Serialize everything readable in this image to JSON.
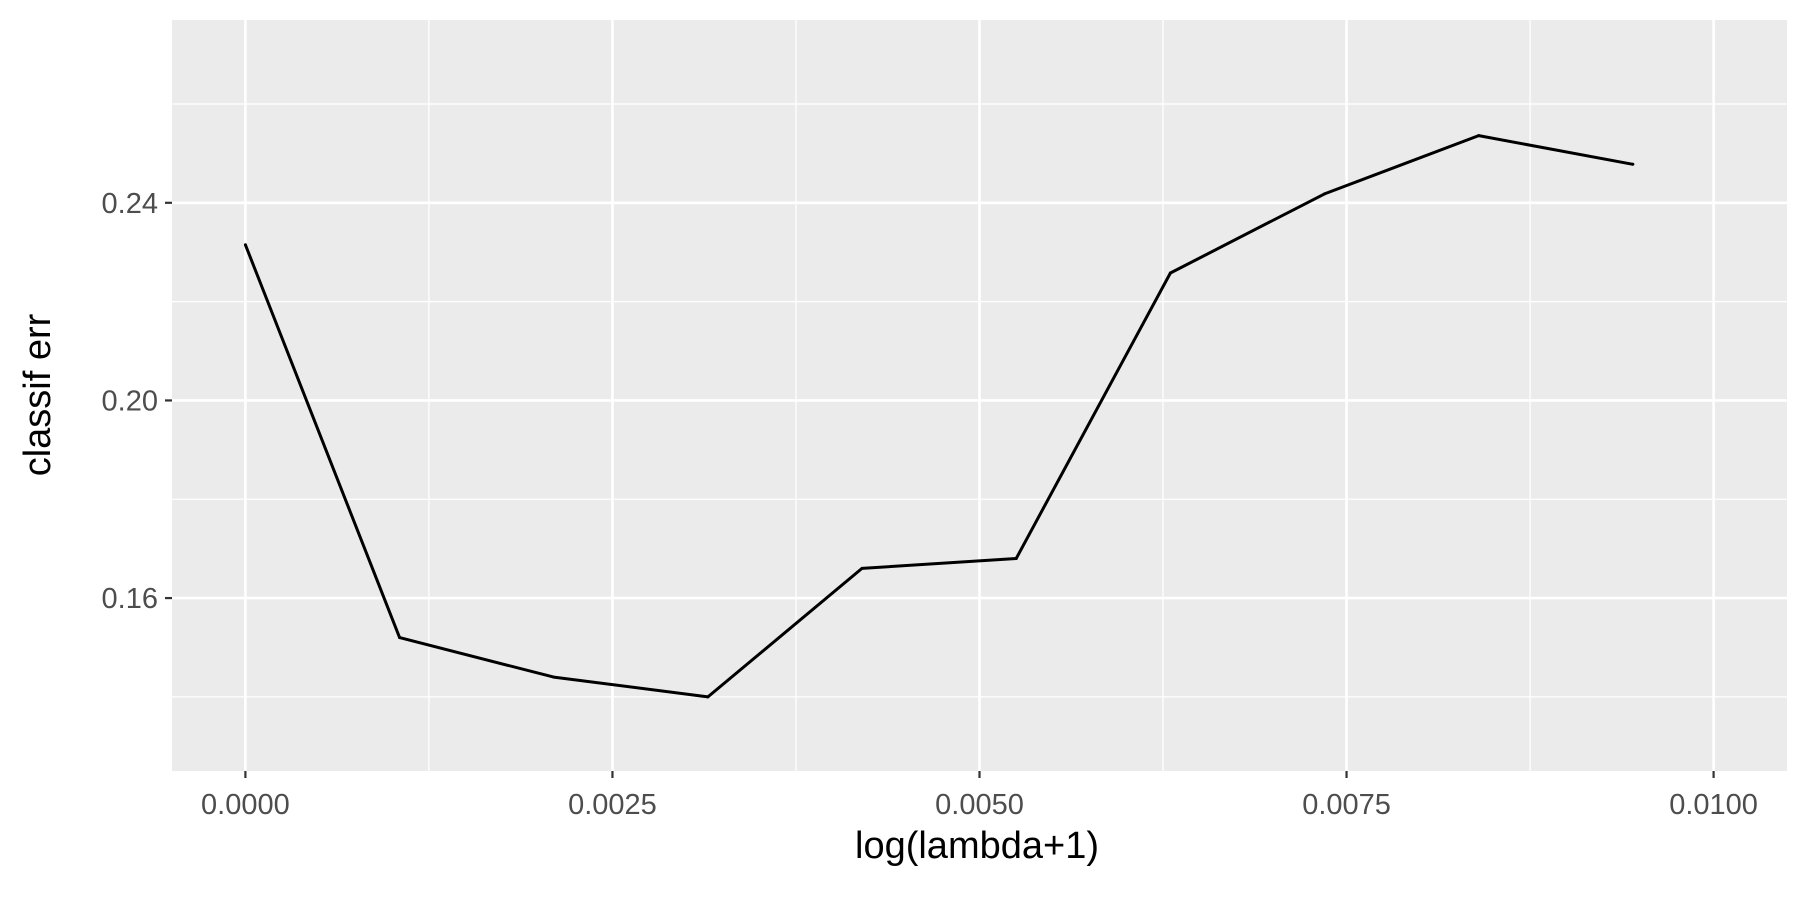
{
  "colors": {
    "panel_background": "#ebebeb",
    "grid_major": "#ffffff",
    "grid_minor": "#f7f7f7",
    "line": "#000000",
    "tick_mark": "#333333",
    "tick_text": "#4d4d4d"
  },
  "chart_data": {
    "type": "line",
    "title": "",
    "xlabel": "log(lambda+1)",
    "ylabel": "classif err",
    "xlim": [
      -0.0005,
      0.0105
    ],
    "ylim": [
      0.125,
      0.277
    ],
    "x_ticks": [
      0.0,
      0.0025,
      0.005,
      0.0075,
      0.01
    ],
    "x_tick_labels": [
      "0.0000",
      "0.0025",
      "0.0050",
      "0.0075",
      "0.0100"
    ],
    "x_minor": [
      0.00125,
      0.00375,
      0.00625,
      0.00875
    ],
    "y_ticks": [
      0.16,
      0.2,
      0.24
    ],
    "y_tick_labels": [
      "0.16",
      "0.20",
      "0.24"
    ],
    "y_minor": [
      0.14,
      0.18,
      0.22,
      0.26
    ],
    "grid": true,
    "series": [
      {
        "x": [
          0.0,
          0.00105,
          0.0021,
          0.00315,
          0.0042,
          0.00525,
          0.0063,
          0.00735,
          0.0084,
          0.00945
        ],
        "y": [
          0.2315,
          0.152,
          0.144,
          0.14,
          0.166,
          0.168,
          0.2258,
          0.2418,
          0.2536,
          0.2478
        ]
      }
    ]
  }
}
